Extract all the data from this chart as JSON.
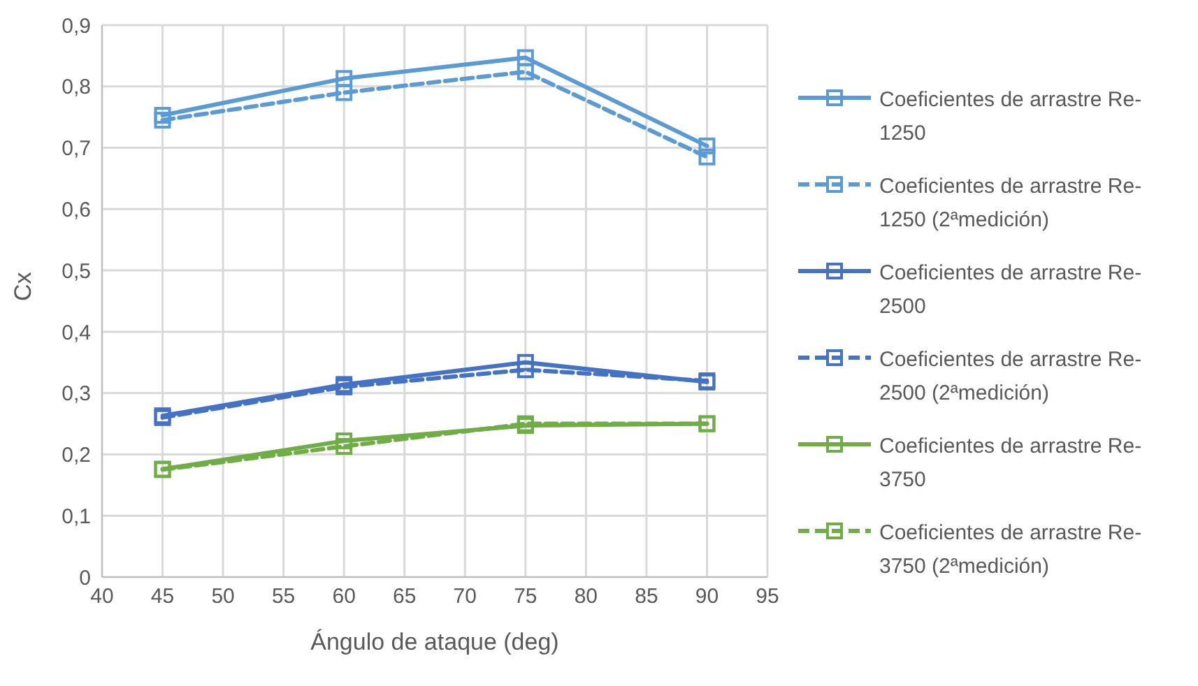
{
  "chart_data": {
    "type": "line",
    "xlabel": "Ángulo de ataque (deg)",
    "ylabel": "Cx",
    "xlim": [
      40,
      95
    ],
    "xticks": [
      40,
      45,
      50,
      55,
      60,
      65,
      70,
      75,
      80,
      85,
      90,
      95
    ],
    "ylim": [
      0,
      0.9
    ],
    "yticks": [
      {
        "value": 0,
        "label": "0"
      },
      {
        "value": 0.1,
        "label": "0,1"
      },
      {
        "value": 0.2,
        "label": "0,2"
      },
      {
        "value": 0.3,
        "label": "0,3"
      },
      {
        "value": 0.4,
        "label": "0,4"
      },
      {
        "value": 0.5,
        "label": "0,5"
      },
      {
        "value": 0.6,
        "label": "0,6"
      },
      {
        "value": 0.7,
        "label": "0,7"
      },
      {
        "value": 0.8,
        "label": "0,8"
      },
      {
        "value": 0.9,
        "label": "0,9"
      }
    ],
    "grid": true,
    "legend": "right",
    "marker": "square",
    "x": [
      45,
      60,
      75,
      90
    ],
    "series": [
      {
        "name": "Coeficientes de arrastre Re-1250",
        "color": "#5b9bd5",
        "line_style": "solid",
        "values": [
          0.753,
          0.813,
          0.847,
          0.703
        ]
      },
      {
        "name": "Coeficientes de arrastre Re-1250 (2ªmedición)",
        "color": "#5b9bd5",
        "line_style": "dashed",
        "values": [
          0.745,
          0.79,
          0.824,
          0.685
        ]
      },
      {
        "name": "Coeficientes de arrastre Re-2500",
        "color": "#4472c4",
        "line_style": "solid",
        "values": [
          0.263,
          0.314,
          0.35,
          0.318
        ]
      },
      {
        "name": "Coeficientes de arrastre Re-2500 (2ªmedición)",
        "color": "#4472c4",
        "line_style": "dashed",
        "values": [
          0.26,
          0.31,
          0.338,
          0.32
        ]
      },
      {
        "name": "Coeficientes de arrastre Re-3750",
        "color": "#70ad47",
        "line_style": "solid",
        "values": [
          0.176,
          0.222,
          0.247,
          0.25
        ]
      },
      {
        "name": "Coeficientes de arrastre Re-3750 (2ªmedición)",
        "color": "#70ad47",
        "line_style": "dashed",
        "values": [
          0.175,
          0.213,
          0.25,
          0.25
        ]
      }
    ]
  }
}
